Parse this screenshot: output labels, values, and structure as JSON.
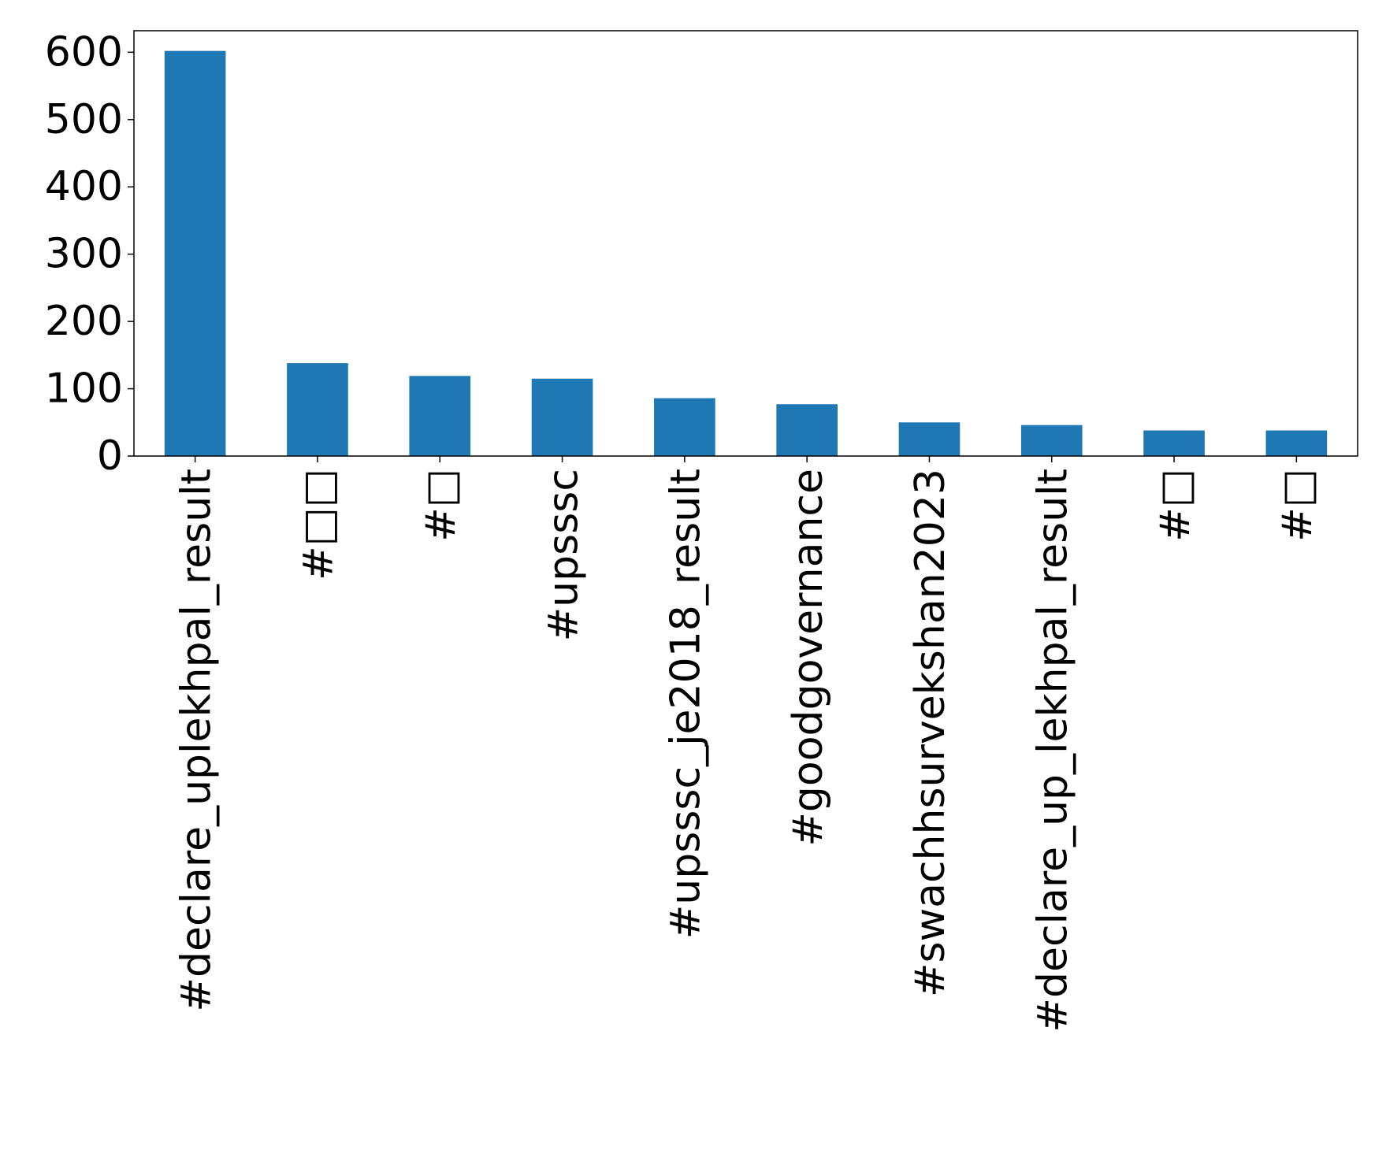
{
  "chart_data": {
    "type": "bar",
    "title": "",
    "xlabel": "",
    "ylabel": "",
    "categories": [
      "#declare_uplekhpal_result",
      "#□□",
      "#□",
      "#upsssc",
      "#upsssc_je2018_result",
      "#goodgovernance",
      "#swachhsurvekshan2023",
      "#declare_up_lekhpal_result",
      "#□",
      "#□"
    ],
    "series": [
      {
        "values": [
          602,
          138,
          119,
          115,
          86,
          77,
          50,
          46,
          38,
          38
        ]
      }
    ],
    "ylim": [
      0,
      632
    ],
    "yticks": [
      0,
      100,
      200,
      300,
      400,
      500,
      600
    ],
    "grid": false,
    "legend": "none",
    "bar_color": "#1f77b4",
    "frame_color": "#000000",
    "tick_label_rotation": "vertical"
  }
}
